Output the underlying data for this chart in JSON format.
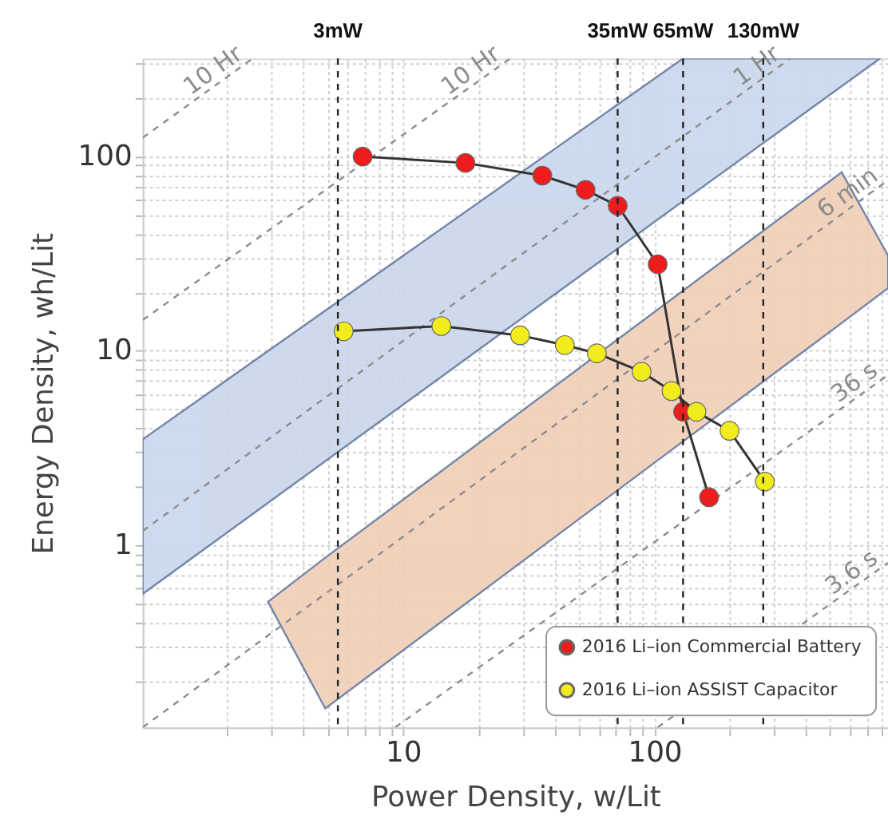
{
  "chart_data": {
    "type": "line",
    "xlabel": "Power Density, w/Lit",
    "ylabel": "Energy Density, wh/Lit",
    "log": "xy",
    "grid": true,
    "legend": "bottom right",
    "xlim": [
      0.92,
      850
    ],
    "ylim": [
      0.115,
      320
    ],
    "xticks": [
      {
        "value": 2,
        "label": null
      },
      {
        "value": 3,
        "label": null
      },
      {
        "value": 4,
        "label": null
      },
      {
        "value": 5,
        "label": null
      },
      {
        "value": 6,
        "label": null
      },
      {
        "value": 7,
        "label": null
      },
      {
        "value": 8,
        "label": null
      },
      {
        "value": 9,
        "label": null
      },
      10,
      {
        "value": 20,
        "label": null
      },
      {
        "value": 30,
        "label": null
      },
      {
        "value": 40,
        "label": null
      },
      {
        "value": 50,
        "label": null
      },
      {
        "value": 60,
        "label": null
      },
      {
        "value": 70,
        "label": null
      },
      {
        "value": 80,
        "label": null
      },
      {
        "value": 90,
        "label": null
      },
      100,
      {
        "value": 200,
        "label": null
      },
      {
        "value": 300,
        "label": null
      },
      {
        "value": 400,
        "label": null
      },
      {
        "value": 500,
        "label": null
      },
      {
        "value": 600,
        "label": null
      },
      {
        "value": 700,
        "label": null
      },
      {
        "value": 800,
        "label": null
      }
    ],
    "yticks": [
      {
        "value": 0.2,
        "label": null
      },
      {
        "value": 0.3,
        "label": null
      },
      {
        "value": 0.4,
        "label": null
      },
      {
        "value": 0.5,
        "label": null
      },
      {
        "value": 0.6,
        "label": null
      },
      {
        "value": 0.7,
        "label": null
      },
      {
        "value": 0.8,
        "label": null
      },
      {
        "value": 0.9,
        "label": null
      },
      1,
      {
        "value": 2,
        "label": null
      },
      {
        "value": 3,
        "label": null
      },
      {
        "value": 4,
        "label": null
      },
      {
        "value": 5,
        "label": null
      },
      {
        "value": 6,
        "label": null
      },
      {
        "value": 7,
        "label": null
      },
      {
        "value": 8,
        "label": null
      },
      {
        "value": 9,
        "label": null
      },
      10,
      {
        "value": 20,
        "label": null
      },
      {
        "value": 30,
        "label": null
      },
      {
        "value": 40,
        "label": null
      },
      {
        "value": 50,
        "label": null
      },
      {
        "value": 60,
        "label": null
      },
      {
        "value": 70,
        "label": null
      },
      {
        "value": 80,
        "label": null
      },
      {
        "value": 90,
        "label": null
      },
      100,
      {
        "value": 200,
        "label": null
      },
      {
        "value": 300,
        "label": null
      }
    ],
    "series": [
      {
        "type": "line",
        "name": "1 Hr",
        "line_style": "dashed",
        "color": "#8c8c8c",
        "x": [
          0.92,
          130,
          347,
          790
        ],
        "values": [
          1.18,
          127,
          320,
          null
        ],
        "lower": [
          0.56,
          59,
          148,
          320
        ],
        "upper": [
          3.5,
          320,
          320,
          320
        ]
      },
      {
        "type": "line",
        "name": "6 min",
        "line_style": "dashed",
        "color": "#8c8c8c",
        "x": [
          0.92,
          2.9,
          4.9,
          556,
          850
        ],
        "values": [
          0.115,
          0.342,
          0.56,
          50.5,
          75.5
        ],
        "lower": [
          null,
          0.51,
          0.144,
          13.9,
          21
        ],
        "upper": [
          null,
          0.51,
          0.86,
          83,
          31
        ]
      },
      {
        "type": "line",
        "name": "10 Hr",
        "line_style": "dashed",
        "color": "#8c8c8c",
        "x": [
          0.92,
          2.52
        ],
        "values": [
          125,
          320
        ]
      },
      {
        "type": "line",
        "name": "10 Hr",
        "line_style": "dashed",
        "color": "#8c8c8c",
        "x": [
          0.92,
          26.7
        ],
        "values": [
          14.4,
          320
        ]
      },
      {
        "type": "line",
        "name": "36 s",
        "line_style": "dashed",
        "color": "#8c8c8c",
        "x": [
          9.3,
          850
        ],
        "values": [
          0.115,
          7.5
        ]
      },
      {
        "type": "line",
        "name": "3.6 s",
        "line_style": "dashed",
        "color": "#8c8c8c",
        "x": [
          103,
          850
        ],
        "values": [
          0.115,
          0.81
        ]
      },
      {
        "marker": "circle",
        "name": "2016 Li–ion Commercial Battery",
        "color": "#ee1c1c",
        "x": [
          6.9,
          17.7,
          35.8,
          53.2,
          71.4,
          103,
          130,
          165
        ],
        "values": [
          100,
          92.7,
          79.8,
          67.4,
          55.8,
          27.9,
          4.85,
          1.76
        ]
      },
      {
        "marker": "circle",
        "name": "2016 Li–ion ASSIST Capacitor",
        "color": "#f2ec1c",
        "x": [
          5.8,
          14.2,
          29.2,
          44.0,
          59.0,
          88.9,
          117,
          147,
          199,
          275
        ],
        "values": [
          12.6,
          13.4,
          12.0,
          10.7,
          9.7,
          7.8,
          6.2,
          4.85,
          3.87,
          2.12
        ]
      }
    ],
    "ref_lines": [
      {
        "axis": "x",
        "value": 5.5,
        "label": "3mW",
        "color": "#222222",
        "line_style": "dashed"
      },
      {
        "axis": "x",
        "value": 71.4,
        "label": "35mW",
        "color": "#222222",
        "line_style": "dashed"
      },
      {
        "axis": "x",
        "value": 130,
        "label": "65mW",
        "color": "#222222",
        "line_style": "dashed"
      },
      {
        "axis": "x",
        "value": 271,
        "label": "130mW",
        "color": "#222222",
        "line_style": "dashed"
      }
    ]
  }
}
